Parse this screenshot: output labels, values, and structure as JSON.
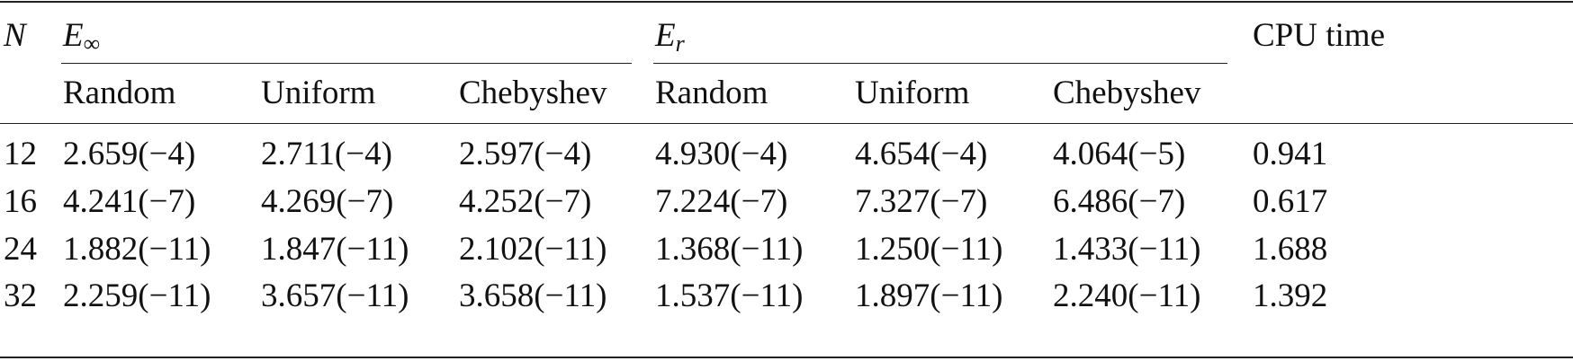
{
  "table": {
    "header": {
      "n": "N",
      "e_inf": "E",
      "e_inf_sub": "∞",
      "e_r": "E",
      "e_r_sub": "r",
      "cpu": "CPU time",
      "subcols": [
        "Random",
        "Uniform",
        "Chebyshev",
        "Random",
        "Uniform",
        "Chebyshev"
      ]
    },
    "rows": [
      {
        "n": "12",
        "cells": [
          "2.659(−4)",
          "2.711(−4)",
          "2.597(−4)",
          "4.930(−4)",
          "4.654(−4)",
          "4.064(−5)"
        ],
        "cpu": "0.941"
      },
      {
        "n": "16",
        "cells": [
          "4.241(−7)",
          "4.269(−7)",
          "4.252(−7)",
          "7.224(−7)",
          "7.327(−7)",
          "6.486(−7)"
        ],
        "cpu": "0.617"
      },
      {
        "n": "24",
        "cells": [
          "1.882(−11)",
          "1.847(−11)",
          "2.102(−11)",
          "1.368(−11)",
          "1.250(−11)",
          "1.433(−11)"
        ],
        "cpu": "1.688"
      },
      {
        "n": "32",
        "cells": [
          "2.259(−11)",
          "3.657(−11)",
          "3.658(−11)",
          "1.537(−11)",
          "1.897(−11)",
          "2.240(−11)"
        ],
        "cpu": "1.392"
      }
    ]
  }
}
